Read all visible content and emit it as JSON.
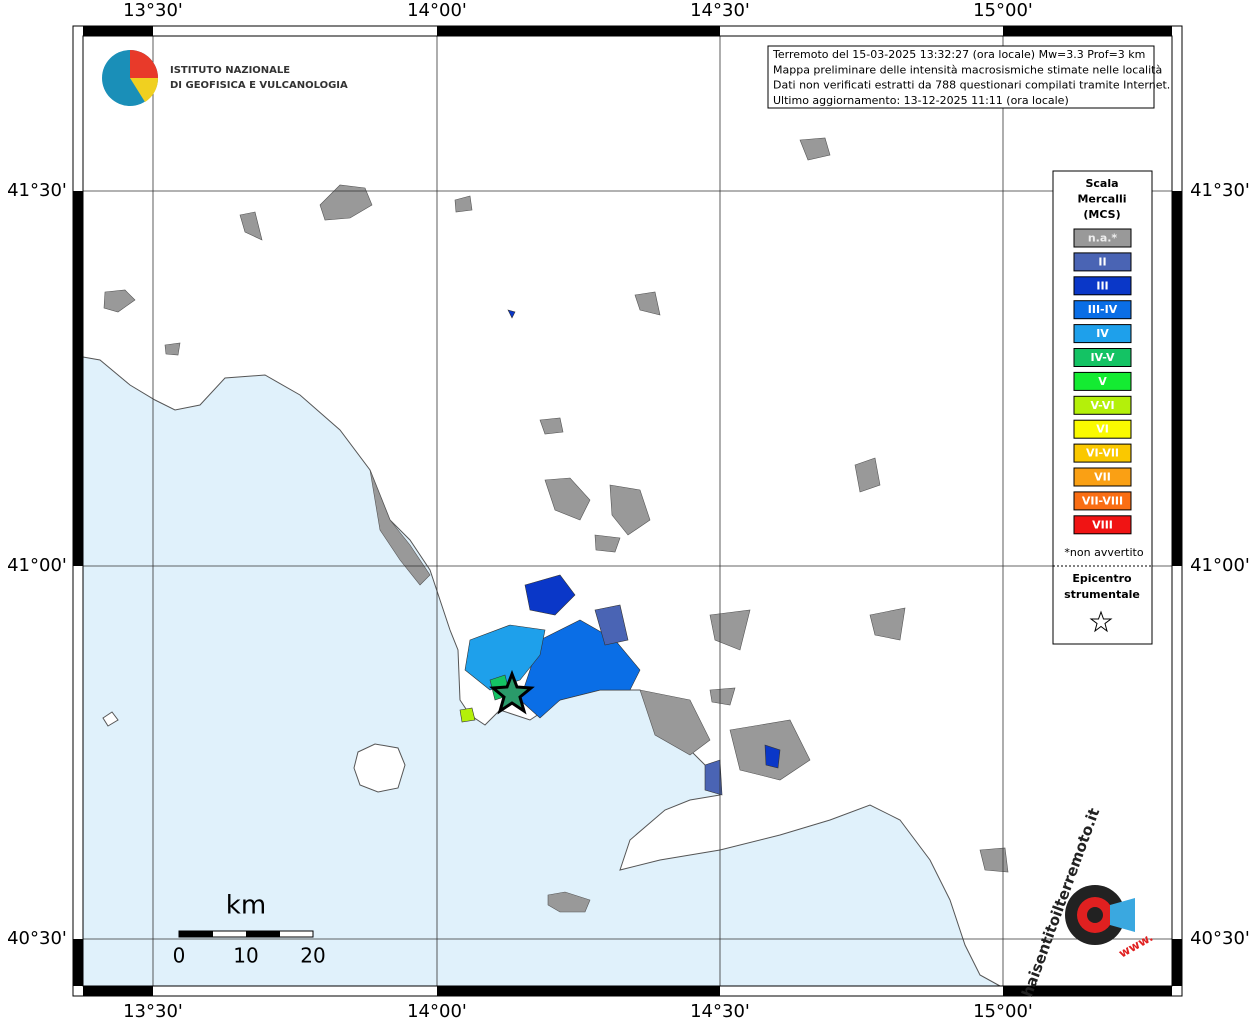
{
  "header": {
    "logo_line1": "ISTITUTO NAZIONALE",
    "logo_line2": "DI GEOFISICA E VULCANOLOGIA"
  },
  "info": [
    "Terremoto del 15-03-2025 13:32:27 (ora locale) Mw=3.3 Prof=3 km",
    "Mappa preliminare delle intensità macrosismiche stimate nelle località",
    "Dati non verificati estratti da 788 questionari compilati tramite Internet.",
    "Ultimo aggiornamento: 13-12-2025 11:11 (ora locale)"
  ],
  "longitude_labels": [
    "13°30'",
    "14°00'",
    "14°30'",
    "15°00'"
  ],
  "latitude_labels": [
    "41°30'",
    "41°00'",
    "40°30'"
  ],
  "legend": {
    "title": [
      "Scala",
      "Mercalli",
      "(MCS)"
    ],
    "items": [
      {
        "label": "n.a.*",
        "color": "#999999"
      },
      {
        "label": "II",
        "color": "#4a64b4"
      },
      {
        "label": "III",
        "color": "#0a37c8"
      },
      {
        "label": "III-IV",
        "color": "#0a6ee6"
      },
      {
        "label": "IV",
        "color": "#1ea0eb"
      },
      {
        "label": "IV-V",
        "color": "#14c364"
      },
      {
        "label": "V",
        "color": "#14eb32"
      },
      {
        "label": "V-VI",
        "color": "#b4f00a"
      },
      {
        "label": "VI",
        "color": "#fafa00"
      },
      {
        "label": "VI-VII",
        "color": "#fac800"
      },
      {
        "label": "VII",
        "color": "#faa014"
      },
      {
        "label": "VII-VIII",
        "color": "#fa6e14"
      },
      {
        "label": "VIII",
        "color": "#f01414"
      }
    ],
    "note": "*non avvertito",
    "epicenter": [
      "Epicentro",
      "strumentale"
    ]
  },
  "scale_bar": {
    "unit": "km",
    "labels": [
      "0",
      "10",
      "20"
    ]
  },
  "watermark": {
    "site": "haisentitoilterremoto.it",
    "prefix": "www."
  }
}
